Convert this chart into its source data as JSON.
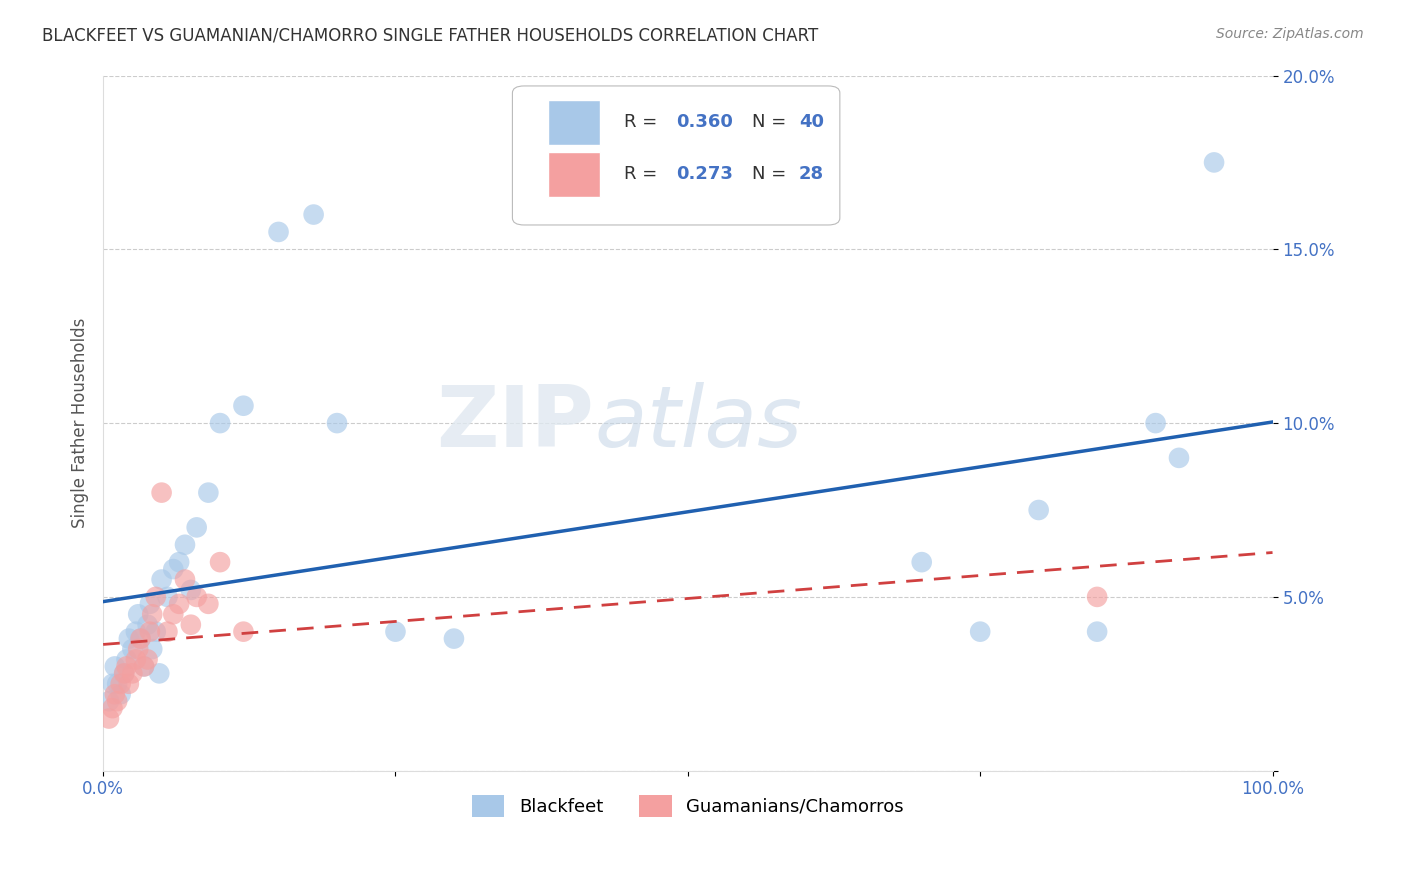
{
  "title": "BLACKFEET VS GUAMANIAN/CHAMORRO SINGLE FATHER HOUSEHOLDS CORRELATION CHART",
  "source": "Source: ZipAtlas.com",
  "ylabel": "Single Father Households",
  "xlim": [
    0,
    1.0
  ],
  "ylim": [
    0,
    0.2
  ],
  "blue_color": "#a8c8e8",
  "pink_color": "#f4a0a0",
  "line_blue": "#2060b0",
  "line_pink": "#d04040",
  "background_color": "#ffffff",
  "grid_color": "#cccccc",
  "tick_color": "#4472c4",
  "blackfeet_x": [
    0.005,
    0.008,
    0.01,
    0.012,
    0.015,
    0.018,
    0.02,
    0.022,
    0.025,
    0.028,
    0.03,
    0.032,
    0.035,
    0.038,
    0.04,
    0.042,
    0.045,
    0.048,
    0.05,
    0.055,
    0.06,
    0.065,
    0.07,
    0.075,
    0.08,
    0.09,
    0.1,
    0.12,
    0.15,
    0.18,
    0.2,
    0.25,
    0.3,
    0.7,
    0.75,
    0.8,
    0.85,
    0.9,
    0.92,
    0.95
  ],
  "blackfeet_y": [
    0.02,
    0.025,
    0.03,
    0.025,
    0.022,
    0.028,
    0.032,
    0.038,
    0.035,
    0.04,
    0.045,
    0.038,
    0.03,
    0.042,
    0.048,
    0.035,
    0.04,
    0.028,
    0.055,
    0.05,
    0.058,
    0.06,
    0.065,
    0.052,
    0.07,
    0.08,
    0.1,
    0.105,
    0.155,
    0.16,
    0.1,
    0.04,
    0.038,
    0.06,
    0.04,
    0.075,
    0.04,
    0.1,
    0.09,
    0.175
  ],
  "guamanian_x": [
    0.005,
    0.008,
    0.01,
    0.012,
    0.015,
    0.018,
    0.02,
    0.022,
    0.025,
    0.028,
    0.03,
    0.032,
    0.035,
    0.038,
    0.04,
    0.042,
    0.045,
    0.05,
    0.055,
    0.06,
    0.065,
    0.07,
    0.075,
    0.08,
    0.09,
    0.1,
    0.12,
    0.85
  ],
  "guamanian_y": [
    0.015,
    0.018,
    0.022,
    0.02,
    0.025,
    0.028,
    0.03,
    0.025,
    0.028,
    0.032,
    0.035,
    0.038,
    0.03,
    0.032,
    0.04,
    0.045,
    0.05,
    0.08,
    0.04,
    0.045,
    0.048,
    0.055,
    0.042,
    0.05,
    0.048,
    0.06,
    0.04,
    0.05
  ]
}
